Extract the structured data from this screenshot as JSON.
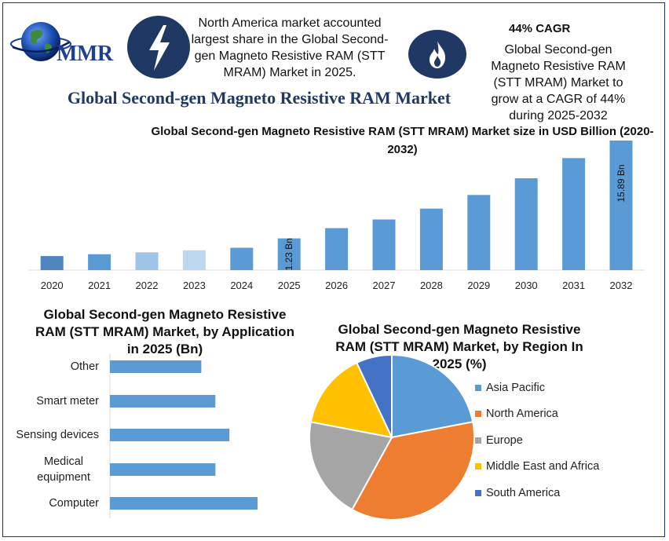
{
  "logo": {
    "text": "MMR"
  },
  "header": {
    "info_text": "North America market accounted largest share in the Global Second-gen Magneto Resistive RAM (STT MRAM)  Market in 2025.",
    "cagr_heading": "44% CAGR",
    "cagr_text": "Global Second-gen Magneto Resistive RAM (STT MRAM) Market to grow at a CAGR of 44% during 2025-2032",
    "lightning_icon": "lightning-bolt-icon",
    "flame_icon": "flame-icon"
  },
  "main_title": "Global Second-gen Magneto Resistive RAM Market",
  "colors": {
    "navy": "#1f3864",
    "bar_blue": "#5b9bd5",
    "orange": "#ed7d31",
    "gray": "#a5a5a5",
    "gold": "#ffc000",
    "dark_blue": "#4472c4"
  },
  "chart_data": [
    {
      "type": "bar",
      "title": "Global Second-gen Magneto Resistive RAM (STT MRAM)  Market size in USD Billion (2020-2032)",
      "categories": [
        "2020",
        "2021",
        "2022",
        "2023",
        "2024",
        "2025",
        "2026",
        "2027",
        "2028",
        "2029",
        "2030",
        "2031",
        "2032"
      ],
      "values": [
        0.28,
        0.35,
        0.43,
        0.52,
        0.65,
        1.23,
        2.05,
        2.88,
        4.1,
        5.9,
        8.5,
        12.2,
        15.89
      ],
      "data_labels": {
        "5": "1.23 Bn",
        "12": "15.89 Bn"
      },
      "bar_colors": [
        "#4f86bf",
        "#5b9bd5",
        "#9dc3e6",
        "#bdd7ee",
        "#5b9bd5",
        "#5b9bd5",
        "#5b9bd5",
        "#5b9bd5",
        "#5b9bd5",
        "#5b9bd5",
        "#5b9bd5",
        "#5b9bd5",
        "#5b9bd5"
      ],
      "ylabel": "",
      "xlabel": "",
      "grid": false
    },
    {
      "type": "bar",
      "orientation": "horizontal",
      "title": "Global Second-gen Magneto Resistive RAM (STT MRAM)  Market, by Application in 2025 (Bn)",
      "categories": [
        "Other",
        "Smart meter",
        "Sensing devices",
        "Medical equipment",
        "Computer"
      ],
      "values": [
        0.13,
        0.15,
        0.17,
        0.15,
        0.21
      ],
      "color": "#5b9bd5"
    },
    {
      "type": "pie",
      "title": "Global Second-gen Magneto Resistive RAM (STT MRAM)  Market, by Region In 2025 (%)",
      "labels": [
        "Asia Pacific",
        "North America",
        "Europe",
        "Middle East and Africa",
        "South America"
      ],
      "values": [
        22,
        36,
        20,
        15,
        7
      ],
      "colors": [
        "#5b9bd5",
        "#ed7d31",
        "#a5a5a5",
        "#ffc000",
        "#4472c4"
      ],
      "legend": "right"
    }
  ]
}
